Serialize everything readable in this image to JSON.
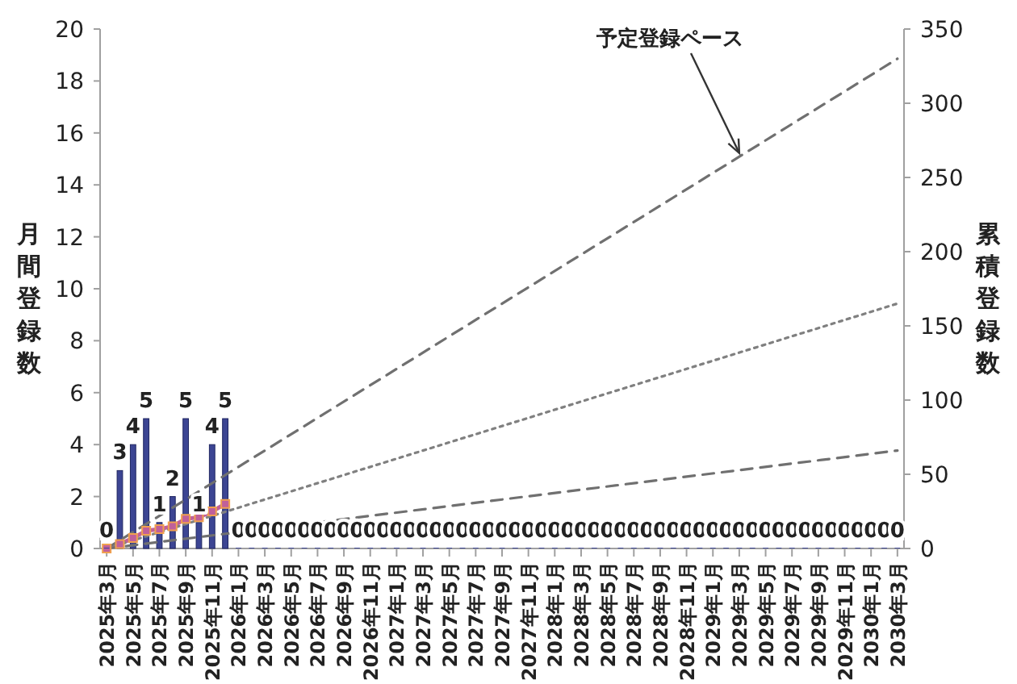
{
  "chart_data": {
    "type": "bar",
    "ylabel": "月間登録数",
    "y2label": "累積登録数",
    "categories": [
      "2025年3月",
      null,
      "2025年5月",
      null,
      "2025年7月",
      null,
      "2025年9月",
      null,
      "2025年11月",
      null,
      "2026年1月",
      null,
      "2026年3月",
      null,
      "2026年5月",
      null,
      "2026年7月",
      null,
      "2026年9月",
      null,
      "2026年11月",
      null,
      "2027年1月",
      null,
      "2027年3月",
      null,
      "2027年5月",
      null,
      "2027年7月",
      null,
      "2027年9月",
      null,
      "2027年11月",
      null,
      "2028年1月",
      null,
      "2028年3月",
      null,
      "2028年5月",
      null,
      "2028年7月",
      null,
      "2028年9月",
      null,
      "2028年11月",
      null,
      "2029年1月",
      null,
      "2029年3月",
      null,
      "2029年5月",
      null,
      "2029年7月",
      null,
      "2029年9月",
      null,
      "2029年11月",
      null,
      "2030年1月",
      null,
      "2030年3月"
    ],
    "series": [
      {
        "color": "#3c4593",
        "values": [
          0,
          3,
          4,
          5,
          1,
          2,
          5,
          1,
          4,
          5,
          0,
          0,
          0,
          0,
          0,
          0,
          0,
          0,
          0,
          0,
          0,
          0,
          0,
          0,
          0,
          0,
          0,
          0,
          0,
          0,
          0,
          0,
          0,
          0,
          0,
          0,
          0,
          0,
          0,
          0,
          0,
          0,
          0,
          0,
          0,
          0,
          0,
          0,
          0,
          0,
          0,
          0,
          0,
          0,
          0,
          0,
          0,
          0,
          0,
          0,
          0
        ],
        "value_labels": [
          "0",
          "3",
          "4",
          "5",
          "1",
          "2",
          "5",
          "1",
          "4",
          "5",
          "0",
          "0",
          "0",
          "0",
          "0",
          "0",
          "0",
          "0",
          "0",
          "0",
          "0",
          "0",
          "0",
          "0",
          "0",
          "0",
          "0",
          "0",
          "0",
          "0",
          "0",
          "0",
          "0",
          "0",
          "0",
          "0",
          "0",
          "0",
          "0",
          "0",
          "0",
          "0",
          "0",
          "0",
          "0",
          "0",
          "0",
          "0",
          "0",
          "0",
          "0",
          "0",
          "0",
          "0",
          "0",
          "0",
          "0",
          "0",
          "0",
          "0",
          "0"
        ]
      },
      {
        "type": "line",
        "axis": "y2",
        "color": "#c0609a",
        "marker": "square",
        "line_style": "solid",
        "values": [
          0,
          3,
          7,
          12,
          13,
          15,
          20,
          21,
          25,
          30,
          null,
          null,
          null,
          null,
          null,
          null,
          null,
          null,
          null,
          null,
          null,
          null,
          null,
          null,
          null,
          null,
          null,
          null,
          null,
          null,
          null,
          null,
          null,
          null,
          null,
          null,
          null,
          null,
          null,
          null,
          null,
          null,
          null,
          null,
          null,
          null,
          null,
          null,
          null,
          null,
          null,
          null,
          null,
          null,
          null,
          null,
          null,
          null,
          null,
          null,
          null
        ]
      },
      {
        "type": "line",
        "axis": "y2",
        "color": "#707070",
        "line_style": "dashed",
        "x": [
          "2025年3月",
          "2030年3月"
        ],
        "values": [
          0,
          330
        ]
      },
      {
        "type": "line",
        "axis": "y2",
        "color": "#808080",
        "line_style": "dotted",
        "x": [
          "2025年3月",
          "2030年3月"
        ],
        "values": [
          0,
          165
        ]
      },
      {
        "type": "line",
        "axis": "y2",
        "color": "#707070",
        "line_style": "dashed",
        "x": [
          "2025年3月",
          "2030年3月"
        ],
        "values": [
          0,
          66
        ]
      }
    ],
    "ylim": [
      0,
      20
    ],
    "yticks": [
      0,
      2,
      4,
      6,
      8,
      10,
      12,
      14,
      16,
      18,
      20
    ],
    "y2lim": [
      0,
      350
    ],
    "y2ticks": [
      0,
      50,
      100,
      150,
      200,
      250,
      300,
      350
    ],
    "annotations": [
      {
        "text": "予定登録ペース",
        "x": "2029年3月",
        "y": 15.1
      }
    ]
  }
}
